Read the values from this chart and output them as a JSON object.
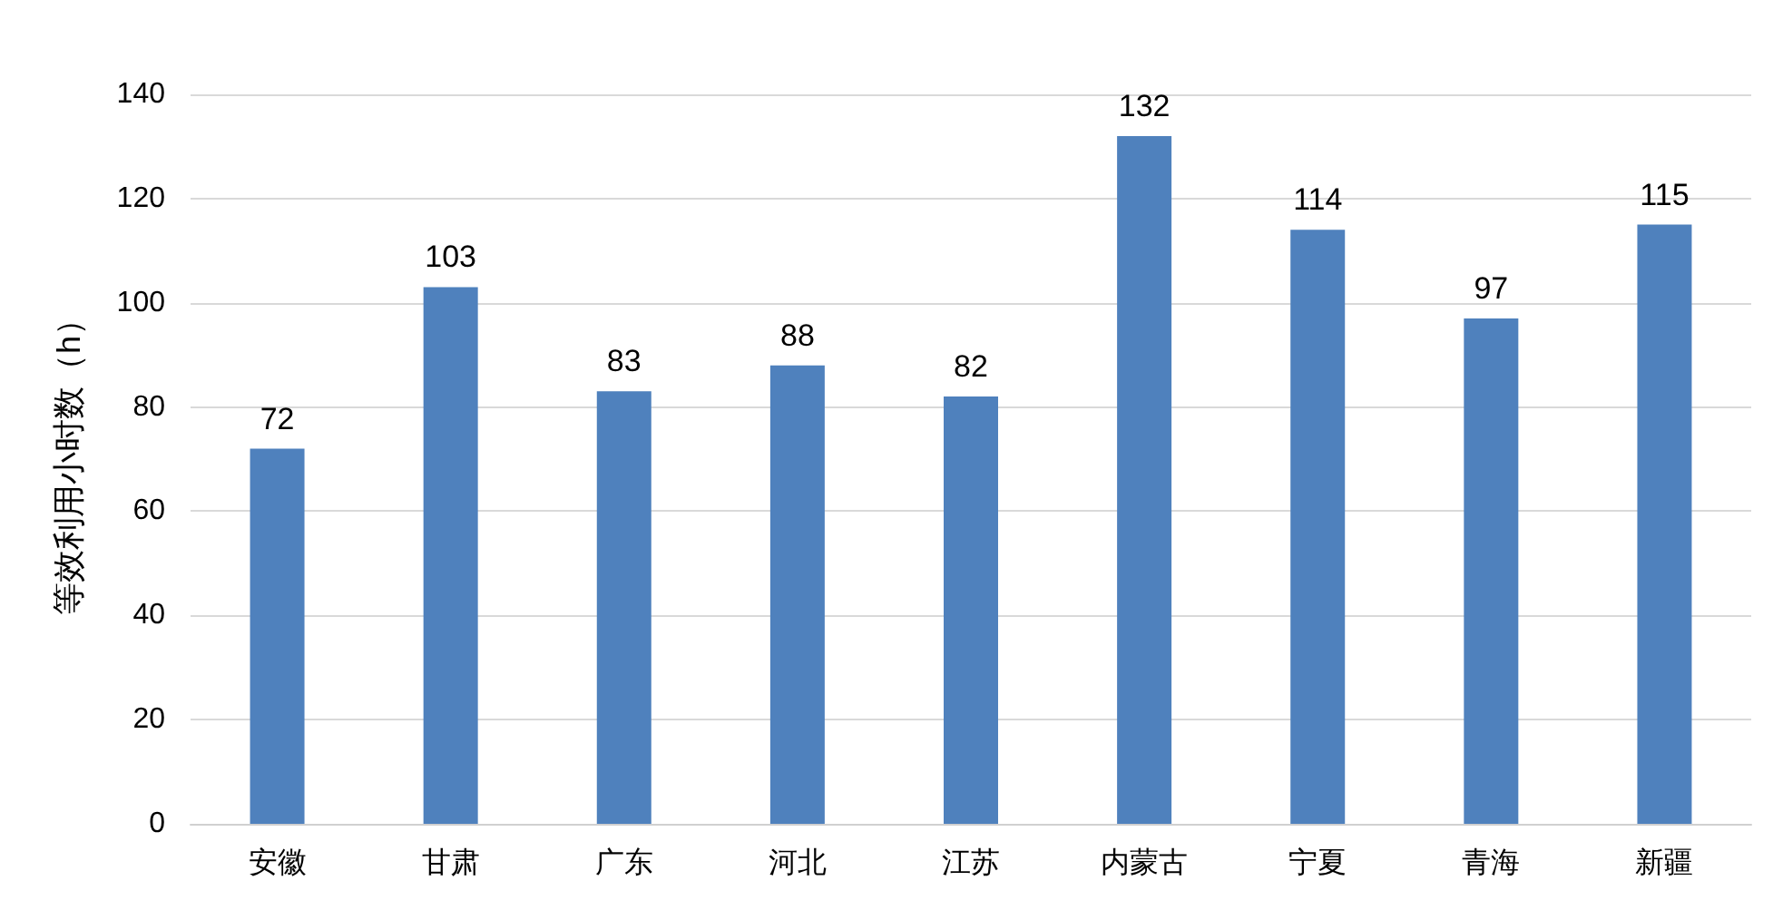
{
  "chart_data": {
    "type": "bar",
    "ylabel": "等效利用小时数（h）",
    "categories": [
      "安徽",
      "甘肃",
      "广东",
      "河北",
      "江苏",
      "内蒙古",
      "宁夏",
      "青海",
      "新疆"
    ],
    "values": [
      72,
      103,
      83,
      88,
      82,
      132,
      114,
      97,
      115
    ],
    "color": "#4f81bd",
    "ylim": [
      0,
      140
    ],
    "yticks": [
      0,
      20,
      40,
      60,
      80,
      100,
      120,
      140
    ],
    "grid": "y",
    "data_labels": true
  }
}
